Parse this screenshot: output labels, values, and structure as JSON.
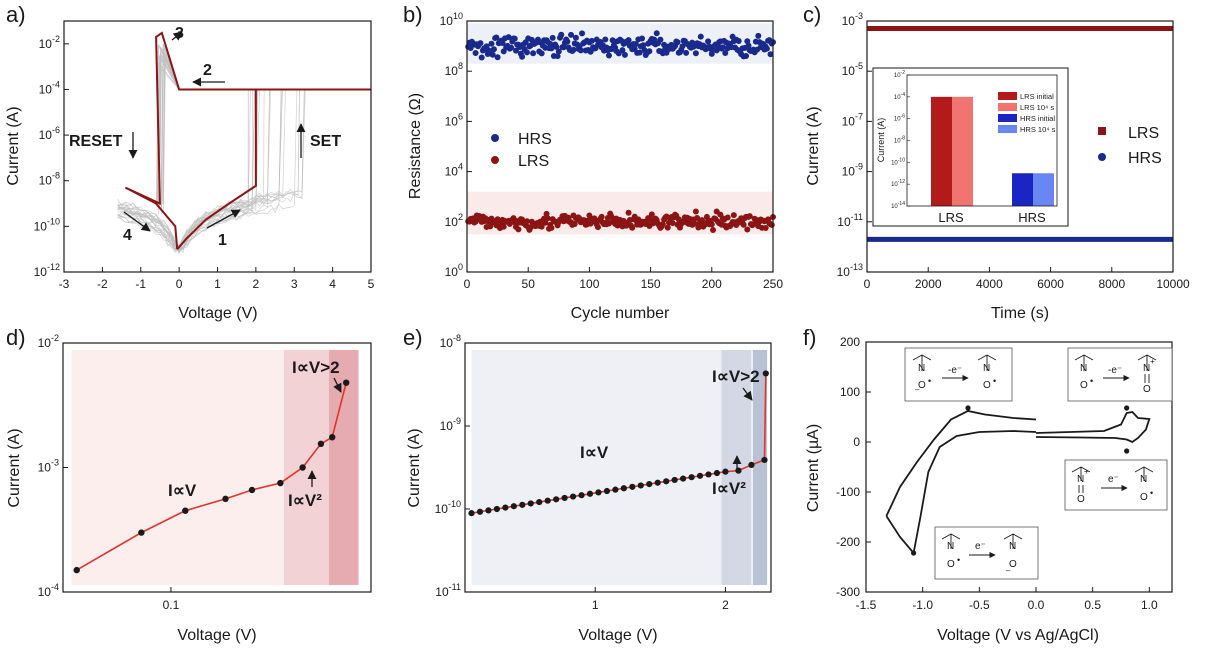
{
  "colors": {
    "dark_red": "#8b1414",
    "red": "#e0342a",
    "navy": "#1a2a8c",
    "gray": "#bdbdbd"
  },
  "chart_data": [
    {
      "id": "a",
      "panel_label": "a)",
      "type": "line",
      "scale_y": "log",
      "xlabel": "Voltage (V)",
      "ylabel": "Current (A)",
      "xlim": [
        -3,
        5
      ],
      "ylim_exp": [
        -12,
        -1
      ],
      "x_ticks": [
        "-3",
        "-2",
        "-1",
        "0",
        "1",
        "2",
        "3",
        "4",
        "5"
      ],
      "annotations": {
        "n1": "1",
        "n2": "2",
        "n3": "3",
        "n4": "4",
        "reset": "RESET",
        "set": "SET"
      },
      "series": [
        {
          "name": "representative sweep",
          "points": [
            [
              -0.05,
              1e-11
            ],
            [
              0.2,
              3e-11
            ],
            [
              0.7,
              2e-10
            ],
            [
              1.3,
              1e-09
            ],
            [
              2.0,
              6e-09
            ],
            [
              2.0,
              0.0001
            ],
            [
              3.0,
              0.0001
            ],
            [
              5.0,
              0.0001
            ],
            [
              5.0,
              0.0001
            ],
            [
              0,
              0.0001
            ],
            [
              -0.45,
              0.03
            ],
            [
              -0.6,
              0.02
            ],
            [
              -0.5,
              1e-09
            ],
            [
              -1.4,
              5e-09
            ],
            [
              -0.6,
              1e-09
            ],
            [
              -0.1,
              1e-10
            ],
            [
              -0.05,
              1e-11
            ]
          ]
        }
      ]
    },
    {
      "id": "b",
      "panel_label": "b)",
      "type": "scatter",
      "scale_y": "log",
      "xlabel": "Cycle number",
      "ylabel": "Resistance (Ω)",
      "xlim": [
        0,
        250
      ],
      "ylim_exp": [
        0,
        10
      ],
      "x_ticks": [
        "0",
        "50",
        "100",
        "150",
        "200",
        "250"
      ],
      "series": [
        {
          "name": "HRS",
          "band_exp": [
            8.3,
            9.9
          ],
          "center_exp": 9.0,
          "spread_exp": 0.45
        },
        {
          "name": "LRS",
          "band_exp": [
            1.5,
            3.2
          ],
          "center_exp": 2.0,
          "spread_exp": 0.35
        }
      ]
    },
    {
      "id": "c",
      "panel_label": "c)",
      "type": "line",
      "scale_y": "log",
      "xlabel": "Time (s)",
      "ylabel": "Current (A)",
      "xlim": [
        0,
        10000
      ],
      "ylim_exp": [
        -13,
        -3
      ],
      "x_ticks": [
        "0",
        "2000",
        "4000",
        "6000",
        "8000",
        "10000"
      ],
      "series": [
        {
          "name": "LRS",
          "value_exp": -3.3
        },
        {
          "name": "HRS",
          "value_exp": -11.7
        }
      ],
      "inset": {
        "type": "bar",
        "ylabel": "Current (A)",
        "ylim_exp": [
          -14,
          -2
        ],
        "categories": [
          "LRS",
          "HRS"
        ],
        "legend": [
          "LRS initial",
          "LRS 10⁴ s",
          "HRS initial",
          "HRS 10⁴ s"
        ],
        "values_exp": [
          [
            -4,
            -4
          ],
          [
            -11,
            -11
          ]
        ]
      }
    },
    {
      "id": "d",
      "panel_label": "d)",
      "type": "line",
      "scale_x": "log",
      "scale_y": "log",
      "xlabel": "Voltage (V)",
      "ylabel": "Current (A)",
      "xlim": [
        0.035,
        0.7
      ],
      "ylim_exp": [
        -4,
        -2
      ],
      "x_ticks": [
        "0.1"
      ],
      "annotations": {
        "ohmic": "I∝V",
        "sq": "I∝V²",
        "high": "I∝V>2"
      },
      "points": [
        [
          0.04,
          0.00015
        ],
        [
          0.075,
          0.0003
        ],
        [
          0.115,
          0.00045
        ],
        [
          0.17,
          0.00056
        ],
        [
          0.22,
          0.00066
        ],
        [
          0.29,
          0.00075
        ],
        [
          0.36,
          0.001
        ],
        [
          0.43,
          0.00155
        ],
        [
          0.48,
          0.00175
        ],
        [
          0.55,
          0.0048
        ]
      ]
    },
    {
      "id": "e",
      "panel_label": "e)",
      "type": "line",
      "scale_y": "log",
      "xlabel": "Voltage (V)",
      "ylabel": "Current (A)",
      "xlim": [
        0,
        2.35
      ],
      "ylim_exp": [
        -11,
        -8
      ],
      "x_ticks": [
        "1",
        "2"
      ],
      "annotations": {
        "ohmic": "I∝V",
        "sq": "I∝V²",
        "high": "I∝V>2"
      },
      "points_note": "ohmic region from 0.05 V to 2.0 V, then steeper rise to 2.3 V"
    },
    {
      "id": "f",
      "panel_label": "f)",
      "type": "line",
      "xlabel": "Voltage (V vs Ag/AgCl)",
      "ylabel": "Current (µA)",
      "xlim": [
        -1.5,
        1.2
      ],
      "ylim": [
        -300,
        200
      ],
      "x_ticks": [
        "-1.5",
        "-1.0",
        "-0.5",
        "0.0",
        "0.5",
        "1.0"
      ],
      "y_ticks": [
        "-300",
        "-200",
        "-100",
        "0",
        "100",
        "200"
      ],
      "annotations": {
        "ox1": "-e⁻",
        "ox2": "-e⁻",
        "red1": "e⁻",
        "red2": "e⁻"
      }
    }
  ]
}
